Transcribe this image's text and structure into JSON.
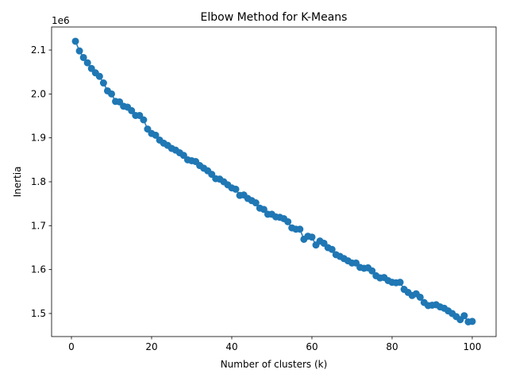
{
  "chart_data": {
    "type": "line",
    "title": "Elbow Method for K-Means",
    "xlabel": "Number of clusters (k)",
    "ylabel": "Inertia",
    "y_offset_text": "1e6",
    "xlim": [
      -4.95,
      105.95
    ],
    "ylim": [
      1.4475,
      2.1525
    ],
    "x_ticks": [
      0,
      20,
      40,
      60,
      80,
      100
    ],
    "y_ticks": [
      1.5,
      1.6,
      1.7,
      1.8,
      1.9,
      2.0,
      2.1
    ],
    "y_tick_labels": [
      "1.5",
      "1.6",
      "1.7",
      "1.8",
      "1.9",
      "2.0",
      "2.1"
    ],
    "marker": "circle",
    "line_color": "#1f77b4",
    "grid": false,
    "series": [
      {
        "x": [
          1,
          2,
          3,
          4,
          5,
          6,
          7,
          8,
          9,
          10,
          11,
          12,
          13,
          14,
          15,
          16,
          17,
          18,
          19,
          20,
          21,
          22,
          23,
          24,
          25,
          26,
          27,
          28,
          29,
          30,
          31,
          32,
          33,
          34,
          35,
          36,
          37,
          38,
          39,
          40,
          41,
          42,
          43,
          44,
          45,
          46,
          47,
          48,
          49,
          50,
          51,
          52,
          53,
          54,
          55,
          56,
          57,
          58,
          59,
          60,
          61,
          62,
          63,
          64,
          65,
          66,
          67,
          68,
          69,
          70,
          71,
          72,
          73,
          74,
          75,
          76,
          77,
          78,
          79,
          80,
          81,
          82,
          83,
          84,
          85,
          86,
          87,
          88,
          89,
          90,
          91,
          92,
          93,
          94,
          95,
          96,
          97,
          98,
          99,
          100
        ],
        "values": [
          2.12,
          2.098,
          2.083,
          2.071,
          2.058,
          2.048,
          2.04,
          2.025,
          2.007,
          2.0,
          1.983,
          1.982,
          1.972,
          1.97,
          1.962,
          1.951,
          1.951,
          1.941,
          1.92,
          1.91,
          1.906,
          1.895,
          1.888,
          1.883,
          1.876,
          1.872,
          1.866,
          1.86,
          1.85,
          1.848,
          1.846,
          1.837,
          1.831,
          1.825,
          1.817,
          1.807,
          1.806,
          1.8,
          1.793,
          1.786,
          1.783,
          1.769,
          1.77,
          1.762,
          1.757,
          1.752,
          1.74,
          1.737,
          1.726,
          1.726,
          1.72,
          1.719,
          1.716,
          1.709,
          1.695,
          1.692,
          1.692,
          1.669,
          1.676,
          1.674,
          1.656,
          1.665,
          1.66,
          1.65,
          1.646,
          1.634,
          1.63,
          1.625,
          1.62,
          1.615,
          1.615,
          1.605,
          1.603,
          1.604,
          1.597,
          1.586,
          1.581,
          1.582,
          1.575,
          1.571,
          1.57,
          1.571,
          1.555,
          1.548,
          1.541,
          1.545,
          1.537,
          1.525,
          1.518,
          1.519,
          1.52,
          1.515,
          1.512,
          1.506,
          1.5,
          1.493,
          1.486,
          1.495,
          1.481,
          1.482
        ]
      }
    ]
  }
}
